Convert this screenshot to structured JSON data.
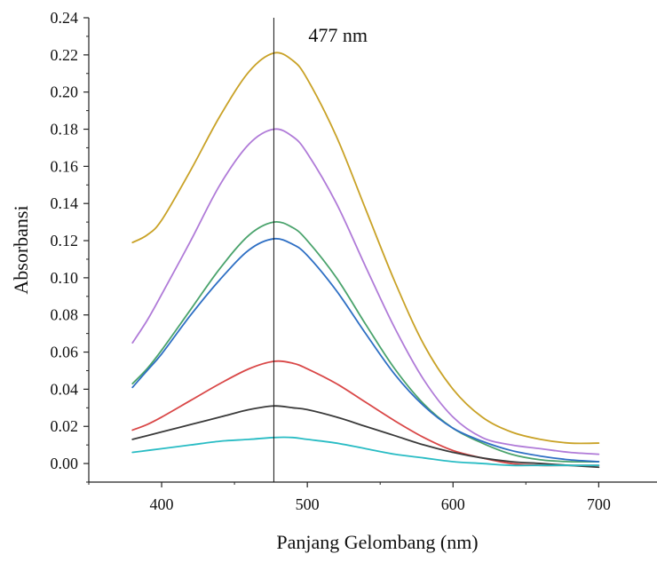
{
  "chart_data": {
    "type": "line",
    "xlabel": "Panjang Gelombang (nm)",
    "ylabel": "Absorbansi",
    "xlim": [
      350,
      740
    ],
    "ylim": [
      -0.01,
      0.24
    ],
    "x_ticks": [
      400,
      500,
      600,
      700
    ],
    "x_tick_labels": [
      "400",
      "500",
      "600",
      "700"
    ],
    "y_ticks": [
      0.0,
      0.02,
      0.04,
      0.06,
      0.08,
      0.1,
      0.12,
      0.14,
      0.16,
      0.18,
      0.2,
      0.22,
      0.24
    ],
    "y_tick_labels": [
      "0.00",
      "0.02",
      "0.04",
      "0.06",
      "0.08",
      "0.10",
      "0.12",
      "0.14",
      "0.16",
      "0.18",
      "0.20",
      "0.22",
      "0.24"
    ],
    "grid": false,
    "legend": "none",
    "reference_line": {
      "x": 477,
      "label": "477 nm"
    },
    "series": [
      {
        "color": "#c9a227",
        "x": [
          380,
          390,
          400,
          420,
          440,
          460,
          477,
          490,
          500,
          520,
          540,
          560,
          580,
          600,
          620,
          640,
          660,
          680,
          700
        ],
        "values": [
          0.119,
          0.123,
          0.131,
          0.158,
          0.187,
          0.211,
          0.221,
          0.217,
          0.207,
          0.176,
          0.137,
          0.098,
          0.064,
          0.04,
          0.025,
          0.017,
          0.013,
          0.011,
          0.011
        ]
      },
      {
        "color": "#b07bd8",
        "x": [
          380,
          390,
          400,
          420,
          440,
          460,
          477,
          490,
          500,
          520,
          540,
          560,
          580,
          600,
          620,
          640,
          660,
          680,
          700
        ],
        "values": [
          0.065,
          0.077,
          0.091,
          0.12,
          0.15,
          0.172,
          0.18,
          0.176,
          0.167,
          0.14,
          0.106,
          0.073,
          0.045,
          0.025,
          0.014,
          0.01,
          0.008,
          0.006,
          0.005
        ]
      },
      {
        "color": "#4aa36c",
        "x": [
          380,
          390,
          400,
          420,
          440,
          460,
          477,
          490,
          500,
          520,
          540,
          560,
          580,
          600,
          620,
          640,
          660,
          680,
          700
        ],
        "values": [
          0.043,
          0.051,
          0.061,
          0.083,
          0.105,
          0.123,
          0.13,
          0.127,
          0.12,
          0.1,
          0.075,
          0.051,
          0.032,
          0.019,
          0.011,
          0.005,
          0.002,
          0.001,
          0.001
        ]
      },
      {
        "color": "#2e6fc4",
        "x": [
          380,
          390,
          400,
          420,
          440,
          460,
          477,
          490,
          500,
          520,
          540,
          560,
          580,
          600,
          620,
          640,
          660,
          680,
          700
        ],
        "values": [
          0.041,
          0.05,
          0.059,
          0.08,
          0.099,
          0.115,
          0.121,
          0.118,
          0.112,
          0.093,
          0.07,
          0.048,
          0.031,
          0.019,
          0.012,
          0.007,
          0.004,
          0.002,
          0.001
        ]
      },
      {
        "color": "#d94747",
        "x": [
          380,
          390,
          400,
          420,
          440,
          460,
          477,
          490,
          500,
          520,
          540,
          560,
          580,
          600,
          620,
          640,
          660,
          680,
          700
        ],
        "values": [
          0.018,
          0.021,
          0.025,
          0.034,
          0.043,
          0.051,
          0.055,
          0.054,
          0.051,
          0.043,
          0.033,
          0.023,
          0.014,
          0.007,
          0.003,
          0.0,
          -0.001,
          -0.001,
          -0.001
        ]
      },
      {
        "color": "#3a3a3a",
        "x": [
          380,
          390,
          400,
          420,
          440,
          460,
          477,
          490,
          500,
          520,
          540,
          560,
          580,
          600,
          620,
          640,
          660,
          680,
          700
        ],
        "values": [
          0.013,
          0.015,
          0.017,
          0.021,
          0.025,
          0.029,
          0.031,
          0.03,
          0.029,
          0.025,
          0.02,
          0.015,
          0.01,
          0.006,
          0.003,
          0.001,
          0.0,
          -0.001,
          -0.002
        ]
      },
      {
        "color": "#29bcc4",
        "x": [
          380,
          390,
          400,
          420,
          440,
          460,
          477,
          490,
          500,
          520,
          540,
          560,
          580,
          600,
          620,
          640,
          660,
          680,
          700
        ],
        "values": [
          0.006,
          0.007,
          0.008,
          0.01,
          0.012,
          0.013,
          0.014,
          0.014,
          0.013,
          0.011,
          0.008,
          0.005,
          0.003,
          0.001,
          0.0,
          -0.001,
          -0.001,
          -0.001,
          -0.001
        ]
      }
    ]
  }
}
